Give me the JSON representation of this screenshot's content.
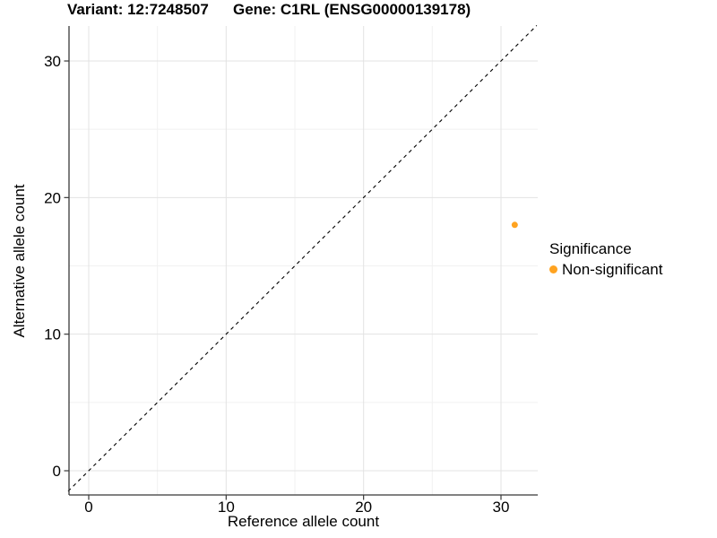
{
  "header": {
    "title_variant": "Variant: 12:7248507",
    "title_gene": "Gene: C1RL (ENSG00000139178)"
  },
  "chart_data": {
    "type": "scatter",
    "title": "Variant: 12:7248507    Gene: C1RL (ENSG00000139178)",
    "xlabel": "Reference allele count",
    "ylabel": "Alternative allele count",
    "xlim": [
      -1.5,
      32.7
    ],
    "ylim": [
      -1.8,
      32.6
    ],
    "x_ticks": [
      0,
      10,
      20,
      30
    ],
    "y_ticks": [
      0,
      10,
      20,
      30
    ],
    "minor_x_ticks": [
      5,
      15,
      25
    ],
    "minor_y_ticks": [
      5,
      15,
      25
    ],
    "grid": true,
    "reference_line": {
      "type": "abline",
      "slope": 1,
      "intercept": 0,
      "style": "dashed",
      "color": "#000000"
    },
    "series": [
      {
        "name": "Non-significant",
        "color": "#FFA320",
        "points": [
          {
            "x": 31,
            "y": 18
          }
        ]
      }
    ],
    "legend": {
      "title": "Significance",
      "position": "right",
      "items": [
        {
          "label": "Non-significant",
          "color": "#FFA320"
        }
      ]
    },
    "colors": {
      "major_grid": "#e3e3e3",
      "minor_grid": "#f1f1f1",
      "axis_line": "#383838",
      "tick_label": "#000000",
      "background": "#ffffff"
    }
  }
}
